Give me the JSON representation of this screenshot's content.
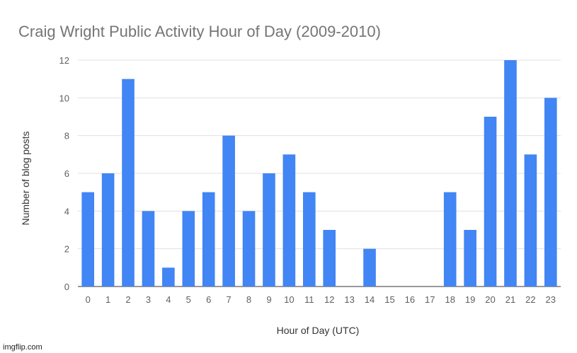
{
  "chart_data": {
    "type": "bar",
    "title": "Craig Wright Public Activity Hour of Day (2009-2010)",
    "xlabel": "Hour of Day (UTC)",
    "ylabel": "Number of blog posts",
    "categories": [
      "0",
      "1",
      "2",
      "3",
      "4",
      "5",
      "6",
      "7",
      "8",
      "9",
      "10",
      "11",
      "12",
      "13",
      "14",
      "15",
      "16",
      "17",
      "18",
      "19",
      "20",
      "21",
      "22",
      "23"
    ],
    "values": [
      5,
      6,
      11,
      4,
      1,
      4,
      5,
      8,
      4,
      6,
      7,
      5,
      3,
      0,
      2,
      0,
      0,
      0,
      5,
      3,
      9,
      12,
      7,
      10
    ],
    "ylim": [
      0,
      12
    ],
    "yticks": [
      "0",
      "2",
      "4",
      "6",
      "8",
      "10",
      "12"
    ],
    "grid": true,
    "legend": "none",
    "colors": {
      "bar": "#4285f4"
    }
  },
  "watermark": "imgflip.com"
}
